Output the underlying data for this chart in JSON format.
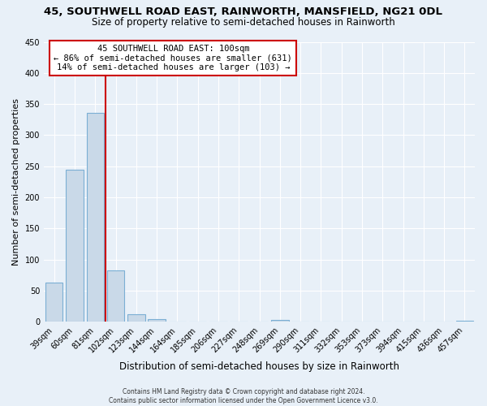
{
  "title": "45, SOUTHWELL ROAD EAST, RAINWORTH, MANSFIELD, NG21 0DL",
  "subtitle": "Size of property relative to semi-detached houses in Rainworth",
  "xlabel": "Distribution of semi-detached houses by size in Rainworth",
  "ylabel": "Number of semi-detached properties",
  "bar_labels": [
    "39sqm",
    "60sqm",
    "81sqm",
    "102sqm",
    "123sqm",
    "144sqm",
    "164sqm",
    "185sqm",
    "206sqm",
    "227sqm",
    "248sqm",
    "269sqm",
    "290sqm",
    "311sqm",
    "332sqm",
    "353sqm",
    "373sqm",
    "394sqm",
    "415sqm",
    "436sqm",
    "457sqm"
  ],
  "bar_values": [
    63,
    245,
    336,
    82,
    12,
    4,
    0,
    0,
    0,
    0,
    0,
    3,
    0,
    0,
    0,
    0,
    0,
    0,
    0,
    0,
    2
  ],
  "bar_color": "#c9d9e8",
  "bar_edge_color": "#7bafd4",
  "ylim": [
    0,
    450
  ],
  "yticks": [
    0,
    50,
    100,
    150,
    200,
    250,
    300,
    350,
    400,
    450
  ],
  "vline_color": "#cc0000",
  "annotation_title": "45 SOUTHWELL ROAD EAST: 100sqm",
  "annotation_line1": "← 86% of semi-detached houses are smaller (631)",
  "annotation_line2": "14% of semi-detached houses are larger (103) →",
  "annotation_box_facecolor": "#ffffff",
  "annotation_box_edgecolor": "#cc0000",
  "footer1": "Contains HM Land Registry data © Crown copyright and database right 2024.",
  "footer2": "Contains public sector information licensed under the Open Government Licence v3.0.",
  "bg_color": "#e8f0f8",
  "grid_color": "#ffffff",
  "title_fontsize": 9.5,
  "subtitle_fontsize": 8.5,
  "tick_fontsize": 7,
  "ylabel_fontsize": 8,
  "xlabel_fontsize": 8.5,
  "footer_fontsize": 5.5,
  "annotation_fontsize": 7.5
}
